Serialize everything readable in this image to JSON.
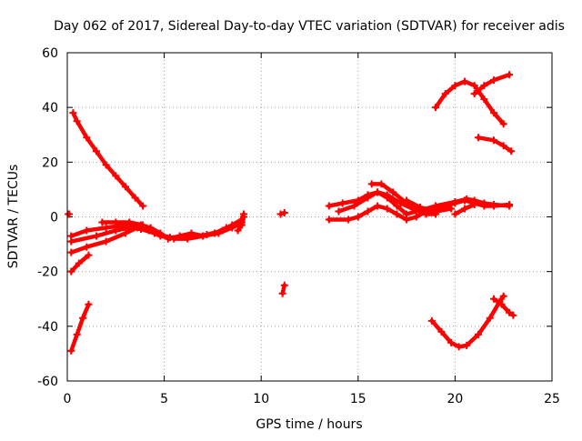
{
  "chart_data": {
    "type": "scatter",
    "title": "Day 062 of 2017, Sidereal Day-to-day VTEC variation (SDTVAR) for receiver adis",
    "xlabel": "GPS time / hours",
    "ylabel": "SDTVAR / TECUs",
    "xlim": [
      0,
      25
    ],
    "ylim": [
      -60,
      60
    ],
    "xticks": [
      "0",
      "5",
      "10",
      "15",
      "20",
      "25"
    ],
    "yticks": [
      "-60",
      "-40",
      "-20",
      "0",
      "20",
      "40",
      "60"
    ],
    "grid": true,
    "legend": "none",
    "series_color": "#ff0000",
    "segments": [
      {
        "points": [
          [
            0.05,
            1
          ],
          [
            0.1,
            1
          ]
        ]
      },
      {
        "points": [
          [
            0.3,
            38
          ],
          [
            0.5,
            35
          ],
          [
            1.0,
            29
          ],
          [
            1.5,
            24
          ],
          [
            2.0,
            19
          ],
          [
            2.5,
            15
          ],
          [
            3.0,
            11
          ],
          [
            3.5,
            7
          ],
          [
            3.9,
            4
          ]
        ]
      },
      {
        "points": [
          [
            0.2,
            -7
          ],
          [
            1.0,
            -5
          ],
          [
            2.0,
            -4
          ],
          [
            3.0,
            -3
          ],
          [
            3.8,
            -3
          ],
          [
            4.3,
            -4
          ],
          [
            4.8,
            -6
          ],
          [
            5.2,
            -8
          ],
          [
            5.8,
            -7
          ],
          [
            6.4,
            -6
          ],
          [
            7.0,
            -7
          ],
          [
            7.6,
            -6
          ],
          [
            8.2,
            -4
          ]
        ]
      },
      {
        "points": [
          [
            0.2,
            -13
          ],
          [
            1.0,
            -11
          ],
          [
            2.0,
            -9
          ],
          [
            3.0,
            -6
          ],
          [
            3.6,
            -4
          ],
          [
            4.2,
            -5
          ],
          [
            4.8,
            -7
          ],
          [
            5.5,
            -8
          ],
          [
            6.2,
            -8
          ],
          [
            7.0,
            -7
          ],
          [
            7.8,
            -6
          ],
          [
            8.5,
            -4
          ],
          [
            9.0,
            -2
          ]
        ]
      },
      {
        "points": [
          [
            0.2,
            -9
          ],
          [
            1.5,
            -7
          ],
          [
            2.5,
            -5
          ],
          [
            3.2,
            -4
          ],
          [
            3.8,
            -4.5
          ],
          [
            4.5,
            -6
          ],
          [
            5.3,
            -7.5
          ],
          [
            6.2,
            -7.5
          ],
          [
            7.2,
            -6.5
          ],
          [
            8.0,
            -5
          ],
          [
            8.5,
            -3
          ],
          [
            9.0,
            -1
          ],
          [
            9.1,
            1
          ]
        ]
      },
      {
        "points": [
          [
            1.8,
            -2
          ],
          [
            2.5,
            -2
          ],
          [
            3.2,
            -2
          ],
          [
            3.9,
            -3
          ]
        ]
      },
      {
        "points": [
          [
            8.8,
            -5
          ],
          [
            9.0,
            -3
          ],
          [
            9.1,
            0
          ]
        ]
      },
      {
        "points": [
          [
            0.2,
            -20
          ],
          [
            0.6,
            -17
          ],
          [
            1.1,
            -14
          ]
        ]
      },
      {
        "points": [
          [
            0.2,
            -49
          ],
          [
            0.5,
            -43
          ],
          [
            0.8,
            -37
          ],
          [
            1.1,
            -32
          ]
        ]
      },
      {
        "points": [
          [
            11.0,
            1
          ],
          [
            11.2,
            1.5
          ]
        ]
      },
      {
        "points": [
          [
            11.1,
            -28
          ],
          [
            11.2,
            -25
          ]
        ]
      },
      {
        "points": [
          [
            13.5,
            -1
          ],
          [
            14.5,
            -1
          ],
          [
            15.0,
            0
          ],
          [
            15.5,
            2
          ],
          [
            16.0,
            4
          ],
          [
            16.5,
            3
          ],
          [
            17.0,
            1
          ],
          [
            17.5,
            -1
          ],
          [
            18.0,
            0
          ],
          [
            18.5,
            2
          ],
          [
            19.0,
            3
          ],
          [
            19.5,
            4
          ],
          [
            20.0,
            5
          ],
          [
            20.5,
            6
          ],
          [
            21.0,
            5
          ],
          [
            21.5,
            4
          ],
          [
            22.0,
            4
          ],
          [
            22.8,
            4.5
          ]
        ]
      },
      {
        "points": [
          [
            13.5,
            4
          ],
          [
            14.2,
            5
          ],
          [
            15.0,
            6
          ],
          [
            15.5,
            8
          ],
          [
            16.0,
            9
          ],
          [
            16.5,
            7
          ],
          [
            17.0,
            4
          ],
          [
            17.5,
            1
          ],
          [
            18.0,
            2
          ],
          [
            19.0,
            4
          ],
          [
            20.0,
            5.5
          ],
          [
            20.6,
            6.5
          ],
          [
            21.0,
            6
          ],
          [
            21.5,
            5
          ],
          [
            22.0,
            4.5
          ],
          [
            22.8,
            4
          ]
        ]
      },
      {
        "points": [
          [
            14.0,
            2
          ],
          [
            14.8,
            4
          ],
          [
            15.5,
            7
          ],
          [
            16.0,
            9
          ],
          [
            16.5,
            8
          ],
          [
            17.2,
            5
          ],
          [
            17.8,
            3
          ],
          [
            18.5,
            1
          ],
          [
            19.0,
            1
          ]
        ]
      },
      {
        "points": [
          [
            15.7,
            12
          ],
          [
            16.2,
            12
          ],
          [
            16.8,
            9
          ],
          [
            17.5,
            5
          ],
          [
            18.2,
            3
          ]
        ]
      },
      {
        "points": [
          [
            17.5,
            6
          ],
          [
            18.2,
            3.5
          ],
          [
            19.0,
            2
          ],
          [
            19.8,
            3
          ]
        ]
      },
      {
        "points": [
          [
            20.0,
            1
          ],
          [
            20.5,
            3
          ],
          [
            21.0,
            4.5
          ]
        ]
      },
      {
        "points": [
          [
            19.0,
            40
          ],
          [
            19.5,
            45
          ],
          [
            20.0,
            48
          ],
          [
            20.5,
            49.5
          ],
          [
            21.0,
            48
          ],
          [
            21.5,
            43
          ],
          [
            22.0,
            38
          ],
          [
            22.5,
            34
          ]
        ]
      },
      {
        "points": [
          [
            21.0,
            45
          ],
          [
            21.5,
            48
          ],
          [
            22.0,
            50
          ],
          [
            22.8,
            52
          ]
        ]
      },
      {
        "points": [
          [
            21.2,
            29
          ],
          [
            22.0,
            28
          ],
          [
            22.5,
            26
          ],
          [
            22.9,
            24
          ]
        ]
      },
      {
        "points": [
          [
            18.8,
            -38
          ],
          [
            19.3,
            -42
          ],
          [
            19.8,
            -46
          ],
          [
            20.2,
            -47.5
          ],
          [
            20.6,
            -47
          ],
          [
            21.2,
            -43
          ],
          [
            21.8,
            -37
          ],
          [
            22.3,
            -31
          ],
          [
            22.5,
            -29
          ]
        ]
      },
      {
        "points": [
          [
            22.0,
            -30
          ],
          [
            22.4,
            -32
          ],
          [
            22.8,
            -35
          ],
          [
            23.0,
            -36
          ]
        ]
      }
    ]
  }
}
